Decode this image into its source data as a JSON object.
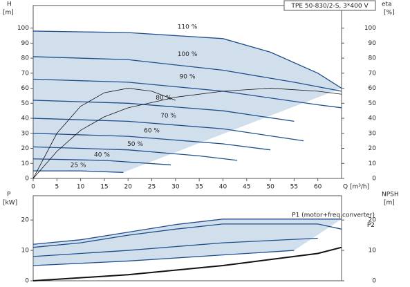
{
  "chart_data": [
    {
      "type": "line",
      "legend_title": "TPE 50-830/2-S, 3*400 V",
      "ylabel": "H",
      "yunit": "[m]",
      "y2label": "eta",
      "y2unit": "[%]",
      "xlabel": "Q [m³/h]",
      "xlim": [
        0,
        65
      ],
      "xticks": [
        0,
        5,
        10,
        15,
        20,
        25,
        30,
        35,
        40,
        45,
        50,
        55,
        60
      ],
      "ylim": [
        0,
        115
      ],
      "yticks": [
        0,
        10,
        20,
        30,
        40,
        50,
        60,
        70,
        80,
        90,
        100
      ],
      "y2lim": [
        0,
        115
      ],
      "y2ticks": [
        0,
        10,
        20,
        30,
        40,
        50,
        60,
        70,
        80,
        90,
        100
      ],
      "grid": false,
      "fill_color": "#c9d9ea",
      "series": [
        {
          "name": "110 %",
          "color": "#1f4e8c",
          "x": [
            0,
            20,
            40,
            50,
            60,
            65
          ],
          "values": [
            98,
            97,
            93,
            84,
            70,
            60
          ]
        },
        {
          "name": "100 %",
          "color": "#1f4e8c",
          "x": [
            0,
            20,
            40,
            55,
            65
          ],
          "values": [
            81,
            79,
            72,
            64,
            58
          ]
        },
        {
          "name": "90 %",
          "color": "#1f4e8c",
          "x": [
            0,
            20,
            40,
            60,
            65
          ],
          "values": [
            66,
            64,
            58,
            49,
            47
          ]
        },
        {
          "name": "80 %",
          "color": "#1f4e8c",
          "x": [
            0,
            20,
            40,
            55
          ],
          "values": [
            52,
            50,
            45,
            38
          ]
        },
        {
          "name": "70 %",
          "color": "#1f4e8c",
          "x": [
            0,
            20,
            40,
            57
          ],
          "values": [
            40,
            38,
            33,
            25
          ]
        },
        {
          "name": "60 %",
          "color": "#1f4e8c",
          "x": [
            0,
            20,
            40,
            50
          ],
          "values": [
            30,
            28,
            23,
            19
          ]
        },
        {
          "name": "50 %",
          "color": "#1f4e8c",
          "x": [
            0,
            20,
            35,
            43
          ],
          "values": [
            21,
            19,
            15,
            12
          ]
        },
        {
          "name": "40 %",
          "color": "#1f4e8c",
          "x": [
            0,
            15,
            29
          ],
          "values": [
            13,
            12,
            9
          ]
        },
        {
          "name": "25 %",
          "color": "#1f4e8c",
          "x": [
            0,
            10,
            19
          ],
          "values": [
            5,
            5,
            4
          ]
        },
        {
          "color": "#111111",
          "axis": "y2",
          "x": [
            0,
            5,
            10,
            15,
            20,
            30,
            40,
            50,
            60,
            65
          ],
          "values": [
            0,
            18,
            32,
            41,
            47,
            54,
            58,
            60,
            58,
            56
          ]
        },
        {
          "color": "#111111",
          "axis": "y2",
          "x": [
            0,
            5,
            10,
            15,
            20,
            25,
            30
          ],
          "values": [
            0,
            30,
            48,
            57,
            60,
            58,
            52
          ]
        }
      ]
    },
    {
      "type": "line",
      "ylabel": "P",
      "yunit": "[kW]",
      "y2label": "NPSH",
      "y2unit": "[m]",
      "xlim": [
        0,
        65
      ],
      "ylim": [
        0,
        28
      ],
      "yticks": [
        0,
        10,
        20
      ],
      "y2lim": [
        0,
        28
      ],
      "y2ticks": [
        0,
        10,
        20
      ],
      "grid": false,
      "fill_color": "#c9d9ea",
      "series": [
        {
          "name": "P1 (motor+freq.converter)",
          "color": "#1f4e8c",
          "x": [
            0,
            10,
            20,
            30,
            40,
            65
          ],
          "values": [
            12,
            13.5,
            16,
            18.5,
            20.3,
            20.3
          ]
        },
        {
          "name": "P2",
          "color": "#1f4e8c",
          "x": [
            0,
            10,
            20,
            30,
            40,
            60,
            65
          ],
          "values": [
            11,
            12.5,
            15,
            17,
            18.7,
            18.7,
            17
          ]
        },
        {
          "color": "#1f4e8c",
          "x": [
            0,
            20,
            40,
            60
          ],
          "values": [
            8,
            10,
            12.5,
            14
          ]
        },
        {
          "color": "#1f4e8c",
          "x": [
            0,
            20,
            40,
            55
          ],
          "values": [
            5,
            6.5,
            8.5,
            10
          ]
        },
        {
          "color": "#111111",
          "axis": "y2",
          "x": [
            0,
            20,
            40,
            60,
            65
          ],
          "values": [
            0,
            2,
            5,
            9,
            11
          ]
        }
      ]
    }
  ]
}
